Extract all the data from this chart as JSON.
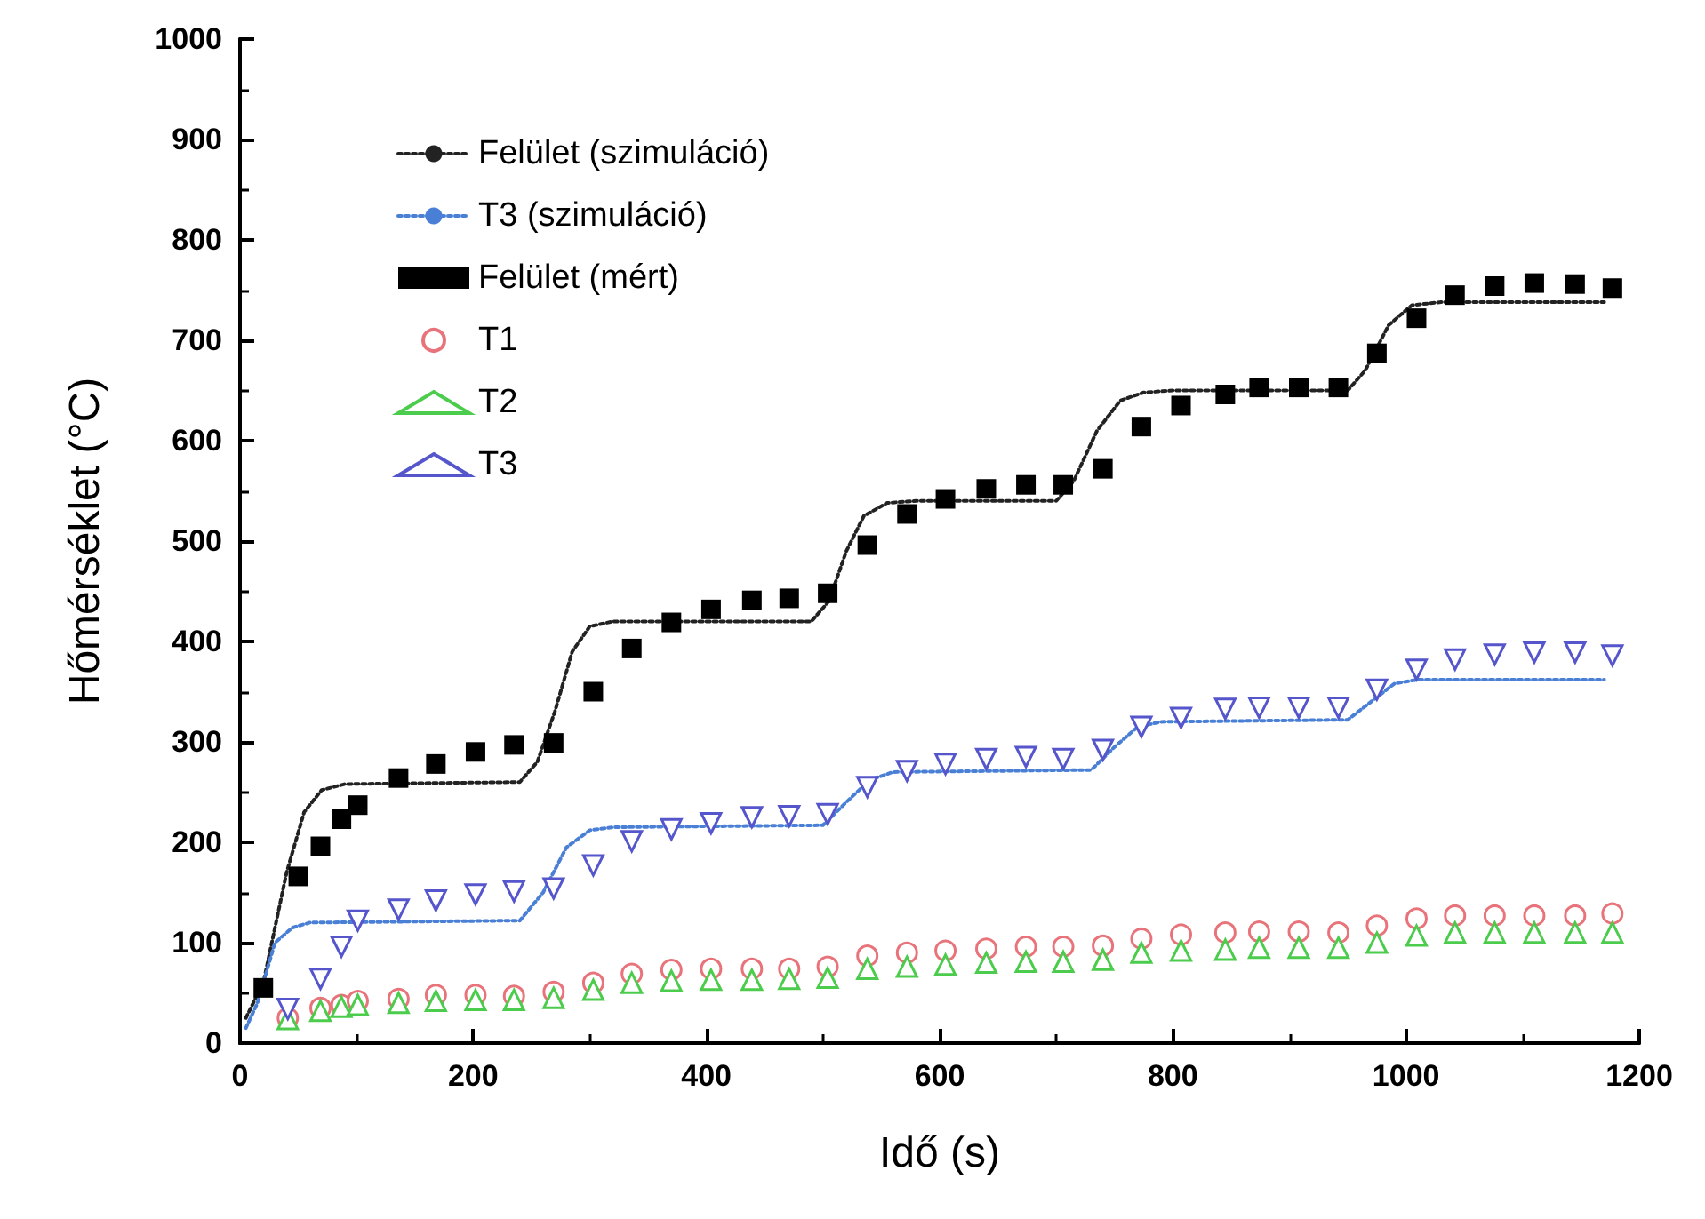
{
  "chart_data": {
    "type": "line",
    "xlabel": "Idő (s)",
    "ylabel": "Hőmérséklet (°C)",
    "xlim": [
      0,
      1200
    ],
    "ylim": [
      0,
      1000
    ],
    "xticks": [
      0,
      200,
      400,
      600,
      800,
      1000,
      1200
    ],
    "yticks": [
      0,
      100,
      200,
      300,
      400,
      500,
      600,
      700,
      800,
      900,
      1000
    ],
    "grid": false,
    "legend": "top left",
    "series": [
      {
        "name": "Felület (szimuláció)",
        "type": "line",
        "color": "#222222",
        "marker": "none",
        "line_style": "dotted",
        "x": [
          5,
          20,
          40,
          55,
          70,
          90,
          240,
          255,
          270,
          285,
          300,
          320,
          490,
          505,
          520,
          535,
          555,
          580,
          700,
          715,
          735,
          755,
          775,
          800,
          950,
          965,
          985,
          1005,
          1030,
          1170
        ],
        "values": [
          25,
          60,
          170,
          230,
          252,
          258,
          260,
          280,
          330,
          390,
          415,
          420,
          420,
          440,
          490,
          525,
          538,
          540,
          540,
          560,
          610,
          640,
          648,
          650,
          650,
          670,
          715,
          735,
          738,
          738
        ]
      },
      {
        "name": "T3 (szimuláció)",
        "type": "line",
        "color": "#4a7fd6",
        "marker": "none",
        "line_style": "dotted",
        "x": [
          5,
          15,
          30,
          45,
          60,
          240,
          260,
          280,
          300,
          320,
          500,
          520,
          540,
          560,
          730,
          750,
          770,
          790,
          950,
          970,
          990,
          1010,
          1170
        ],
        "values": [
          15,
          40,
          100,
          115,
          120,
          122,
          150,
          195,
          212,
          215,
          217,
          240,
          262,
          270,
          272,
          295,
          315,
          320,
          322,
          340,
          358,
          362,
          362
        ]
      },
      {
        "name": "Felület (mért)",
        "type": "scatter",
        "color": "#000000",
        "marker": "square",
        "x": [
          20,
          50,
          69,
          87,
          101,
          136,
          168,
          202,
          235,
          269,
          303,
          336,
          370,
          404,
          439,
          471,
          504,
          538,
          572,
          605,
          640,
          674,
          706,
          740,
          773,
          807,
          845,
          874,
          908,
          942,
          975,
          1009,
          1042,
          1076,
          1110,
          1145,
          1177
        ],
        "values": [
          55,
          166,
          196,
          223,
          237,
          264,
          278,
          290,
          297,
          299,
          350,
          393,
          419,
          432,
          441,
          443,
          448,
          496,
          527,
          542,
          552,
          556,
          556,
          572,
          614,
          635,
          646,
          653,
          653,
          653,
          687,
          722,
          745,
          754,
          757,
          756,
          752
        ]
      },
      {
        "name": "T1",
        "type": "scatter",
        "color": "#e8737a",
        "marker": "circle",
        "x": [
          41,
          69,
          87,
          101,
          136,
          168,
          202,
          235,
          269,
          303,
          336,
          370,
          404,
          439,
          471,
          504,
          538,
          572,
          605,
          640,
          674,
          706,
          740,
          773,
          807,
          845,
          874,
          908,
          942,
          975,
          1009,
          1042,
          1076,
          1110,
          1145,
          1177
        ],
        "values": [
          25,
          35,
          38,
          42,
          44,
          48,
          48,
          47,
          51,
          60,
          69,
          73,
          74,
          74,
          74,
          76,
          87,
          90,
          92,
          94,
          96,
          96,
          97,
          104,
          108,
          110,
          111,
          111,
          110,
          117,
          124,
          127,
          127,
          127,
          127,
          129
        ]
      },
      {
        "name": "T2",
        "type": "scatter",
        "color": "#4ccc4c",
        "marker": "triangle",
        "x": [
          41,
          69,
          87,
          101,
          136,
          168,
          202,
          235,
          269,
          303,
          336,
          370,
          404,
          439,
          471,
          504,
          538,
          572,
          605,
          640,
          674,
          706,
          740,
          773,
          807,
          845,
          874,
          908,
          942,
          975,
          1009,
          1042,
          1076,
          1110,
          1145,
          1177
        ],
        "values": [
          24,
          32,
          36,
          38,
          40,
          42,
          43,
          43,
          45,
          53,
          60,
          62,
          63,
          63,
          64,
          65,
          74,
          76,
          78,
          80,
          81,
          81,
          83,
          90,
          92,
          93,
          95,
          95,
          95,
          100,
          107,
          110,
          110,
          110,
          110,
          110
        ]
      },
      {
        "name": "T3",
        "type": "scatter",
        "color": "#5555cc",
        "marker": "triangle-down",
        "x": [
          41,
          69,
          87,
          101,
          136,
          168,
          202,
          235,
          269,
          303,
          336,
          370,
          404,
          439,
          471,
          504,
          538,
          572,
          605,
          640,
          674,
          706,
          740,
          773,
          807,
          845,
          874,
          908,
          942,
          975,
          1009,
          1042,
          1076,
          1110,
          1145,
          1177
        ],
        "values": [
          34,
          64,
          96,
          122,
          133,
          142,
          148,
          151,
          154,
          177,
          201,
          213,
          219,
          225,
          226,
          228,
          255,
          271,
          278,
          283,
          285,
          283,
          292,
          315,
          324,
          333,
          334,
          334,
          334,
          352,
          372,
          382,
          387,
          389,
          389,
          386
        ]
      }
    ]
  }
}
